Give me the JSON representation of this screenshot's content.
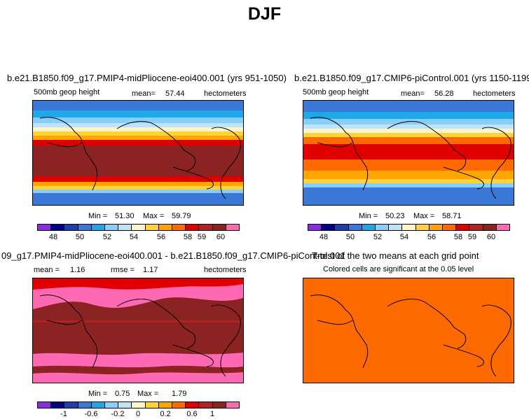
{
  "title": "DJF",
  "palette": [
    "#8a2be2",
    "#00008b",
    "#1e3fa8",
    "#3a78d8",
    "#1ea8e8",
    "#87cefa",
    "#bfe4f8",
    "#fff5c8",
    "#ffd23a",
    "#ffa500",
    "#ff6a00",
    "#e00000",
    "#b22222",
    "#8b2323",
    "#ff69b4"
  ],
  "panels": {
    "top_left": {
      "case": "b.e21.B1850.f09_g17.PMIP4-midPliocene-eoi400.001 (yrs 951-1050)",
      "variable": "500mb geop height",
      "mean_label": "mean=",
      "mean_value": "57.44",
      "units": "hectometers",
      "min_label": "Min =",
      "min_value": "51.30",
      "max_label": "Max =",
      "max_value": "59.79",
      "ticks": [
        "48",
        "50",
        "52",
        "54",
        "56",
        "58",
        "59",
        "60"
      ]
    },
    "top_right": {
      "case": "b.e21.B1850.f09_g17.CMIP6-piControl.001 (yrs 1150-1199)",
      "variable": "500mb geop height",
      "mean_label": "mean=",
      "mean_value": "56.28",
      "units": "hectometers",
      "min_label": "Min =",
      "min_value": "50.23",
      "max_label": "Max =",
      "max_value": "58.71",
      "ticks": [
        "48",
        "50",
        "52",
        "54",
        "56",
        "58",
        "59",
        "60"
      ]
    },
    "bottom_left": {
      "case": "09_g17.PMIP4-midPliocene-eoi400.001 - b.e21.B1850.f09_g17.CMIP6-piControl.001",
      "mean_label": "mean =",
      "mean_value": "1.16",
      "rmse_label": "rmse =",
      "rmse_value": "1.17",
      "units": "hectometers",
      "min_label": "Min =",
      "min_value": "0.75",
      "max_label": "Max =",
      "max_value": "1.79",
      "ticks": [
        "-1",
        "-0.6",
        "-0.2",
        "0",
        "0.2",
        "0.6",
        "1"
      ]
    },
    "bottom_right": {
      "title": "T-test of the two means at each grid point",
      "subtitle": "Colored cells are significant at the 0.05 level"
    }
  }
}
